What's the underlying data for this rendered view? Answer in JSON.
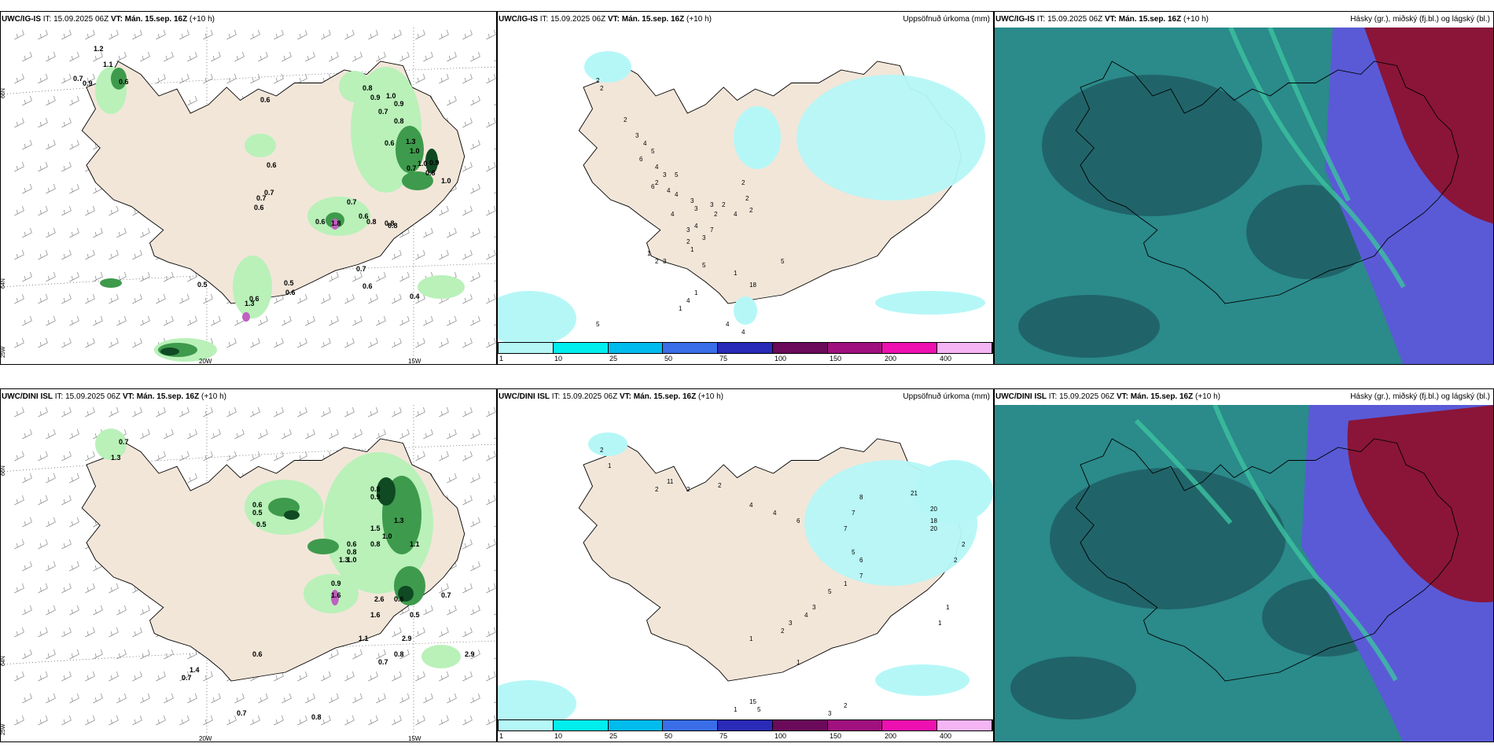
{
  "colors": {
    "land": "#f2e6d9",
    "precip_light": "#b9f1b9",
    "precip_mid": "#3e9a4c",
    "precip_dark": "#0f4a22",
    "accum_light": "#b5f7f7",
    "cloud_low": "#2b8a8a",
    "cloud_mid": "#3cc3a0",
    "cloud_high_blue": "#5a5ad6",
    "cloud_high_red": "#8a1538"
  },
  "panels": {
    "igis_precip": {
      "model": "UWC/IG-IS",
      "it_label": "IT: 15.09.2025 06Z",
      "vt_label": "VT: Mán. 15.sep. 16Z",
      "lead": "(+10 h)",
      "values": [
        "1.2",
        "1.1",
        "0.7",
        "0.9",
        "0.6",
        "0.6",
        "0.8",
        "0.9",
        "1.0",
        "0.9",
        "0.7",
        "0.8",
        "0.6",
        "1.3",
        "1.0",
        "0.7",
        "0.6",
        "0.7",
        "0.6",
        "0.6",
        "1.8",
        "0.6",
        "0.8",
        "0.8",
        "0.8",
        "0.7",
        "0.7",
        "0.6",
        "0.5",
        "0.5",
        "0.6",
        "0.4",
        "0.6",
        "1.3",
        "0.7",
        "0.8",
        "0.9",
        "1.0",
        "1.0"
      ],
      "lat_labels": [
        "66N",
        "64N",
        "25W"
      ],
      "lon_labels": [
        "20W",
        "15W"
      ]
    },
    "igis_accum": {
      "model": "UWC/IG-IS",
      "it_label": "IT: 15.09.2025 06Z",
      "vt_label": "VT: Mán. 15.sep. 16Z",
      "lead": "(+10 h)",
      "right_label": "Uppsöfnuð úrkoma (mm)",
      "values": [
        "2",
        "2",
        "5",
        "4",
        "2",
        "3",
        "4",
        "5",
        "6",
        "4",
        "3",
        "6",
        "5",
        "2",
        "2",
        "4",
        "3",
        "7",
        "1",
        "2",
        "4",
        "4",
        "3",
        "3",
        "3",
        "2",
        "2",
        "2",
        "4",
        "4",
        "3",
        "2",
        "2",
        "5",
        "1",
        "18",
        "1",
        "4",
        "1",
        "4",
        "4",
        "5",
        "1",
        "3"
      ]
    },
    "igis_cloud": {
      "model": "UWC/IG-IS",
      "it_label": "IT: 15.09.2025 06Z",
      "vt_label": "VT: Mán. 15.sep. 16Z",
      "lead": "(+10 h)",
      "right_label": "Hásky (gr.), miðský (fj.bl.) og lágský (bl.)"
    },
    "dini_precip": {
      "model": "UWC/DINI ISL",
      "it_label": "IT: 15.09.2025 06Z",
      "vt_label": "VT: Mán. 15.sep. 16Z",
      "lead": "(+10 h)",
      "values": [
        "0.7",
        "1.3",
        "0.6",
        "0.5",
        "0.5",
        "0.8",
        "0.9",
        "1.3",
        "1.5",
        "1.0",
        "0.8",
        "0.6",
        "0.8",
        "1.0",
        "1.1",
        "1.3",
        "0.9",
        "1.6",
        "2.6",
        "0.6",
        "0.5",
        "1.6",
        "1.1",
        "2.9",
        "0.8",
        "0.7",
        "0.6",
        "1.4",
        "0.7",
        "0.7",
        "0.8",
        "2.9",
        "0.7"
      ],
      "lat_labels": [
        "66N",
        "64N",
        "25W"
      ],
      "lon_labels": [
        "20W",
        "15W"
      ]
    },
    "dini_accum": {
      "model": "UWC/DINI ISL",
      "it_label": "IT: 15.09.2025 06Z",
      "vt_label": "VT: Mán. 15.sep. 16Z",
      "lead": "(+10 h)",
      "right_label": "Uppsöfnuð úrkoma (mm)",
      "values": [
        "2",
        "1",
        "2",
        "11",
        "2",
        "2",
        "4",
        "4",
        "6",
        "8",
        "7",
        "7",
        "21",
        "20",
        "18",
        "20",
        "5",
        "6",
        "7",
        "1",
        "5",
        "3",
        "4",
        "3",
        "2",
        "1",
        "1",
        "15",
        "1",
        "5",
        "2",
        "3",
        "2",
        "2",
        "1",
        "1"
      ]
    },
    "dini_cloud": {
      "model": "UWC/DINI ISL",
      "it_label": "IT: 15.09.2025 06Z",
      "vt_label": "VT: Mán. 15.sep. 16Z",
      "lead": "(+10 h)",
      "right_label": "Hásky (gr.), miðský (fj.bl.) og lágský (bl.)"
    }
  },
  "legend": {
    "ticks": [
      "1",
      "10",
      "25",
      "50",
      "75",
      "100",
      "150",
      "200",
      "400"
    ],
    "colors": [
      "#b5f7f7",
      "#00eeee",
      "#00bbee",
      "#3a6ee8",
      "#2a2ab8",
      "#6b0a5a",
      "#a0107e",
      "#ee10b0",
      "#f5b5f5"
    ]
  }
}
